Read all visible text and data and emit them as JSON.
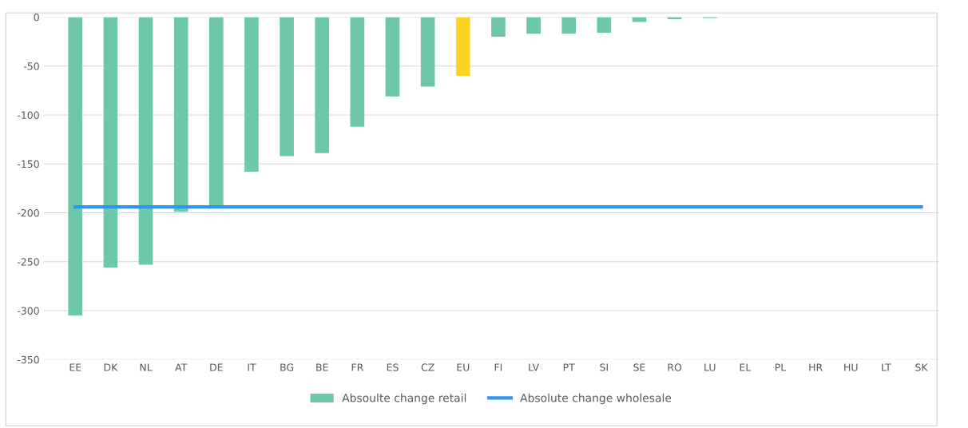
{
  "chart_data": {
    "type": "bar",
    "categories": [
      "EE",
      "DK",
      "NL",
      "AT",
      "DE",
      "IT",
      "BG",
      "BE",
      "FR",
      "ES",
      "CZ",
      "EU",
      "FI",
      "LV",
      "PT",
      "SI",
      "SE",
      "RO",
      "LU",
      "EL",
      "PL",
      "HR",
      "HU",
      "LT",
      "SK"
    ],
    "series": [
      {
        "name": "Absoulte change retail",
        "color": "#6ec7a8",
        "colors": [
          "#6ec7a8",
          "#6ec7a8",
          "#6ec7a8",
          "#6ec7a8",
          "#6ec7a8",
          "#6ec7a8",
          "#6ec7a8",
          "#6ec7a8",
          "#6ec7a8",
          "#6ec7a8",
          "#6ec7a8",
          "#ffd324",
          "#6ec7a8",
          "#6ec7a8",
          "#6ec7a8",
          "#6ec7a8",
          "#6ec7a8",
          "#6ec7a8",
          "#6ec7a8",
          "#6ec7a8",
          "#6ec7a8",
          "#6ec7a8",
          "#6ec7a8",
          "#6ec7a8",
          "#6ec7a8"
        ],
        "values": [
          -305,
          -256,
          -253,
          -199,
          -193,
          -158,
          -142,
          -139,
          -112,
          -81,
          -71,
          -60,
          -20,
          -17,
          -17,
          -16,
          -5,
          -2,
          -1,
          0,
          0,
          0,
          0,
          0,
          0
        ]
      },
      {
        "name": "Absolute change wholesale",
        "type": "line",
        "color": "#2f95f2",
        "values": [
          -194,
          -194,
          -194,
          -194,
          -194,
          -194,
          -194,
          -194,
          -194,
          -194,
          -194,
          -194,
          -194,
          -194,
          -194,
          -194,
          -194,
          -194,
          -194,
          -194,
          -194,
          -194,
          -194,
          -194,
          -194
        ]
      }
    ],
    "ylim": [
      -350,
      0
    ],
    "yticks": [
      -350,
      -300,
      -250,
      -200,
      -150,
      -100,
      -50,
      0
    ],
    "grid": "y",
    "legend": "bottom",
    "marker": "none",
    "line_style": "solid"
  }
}
